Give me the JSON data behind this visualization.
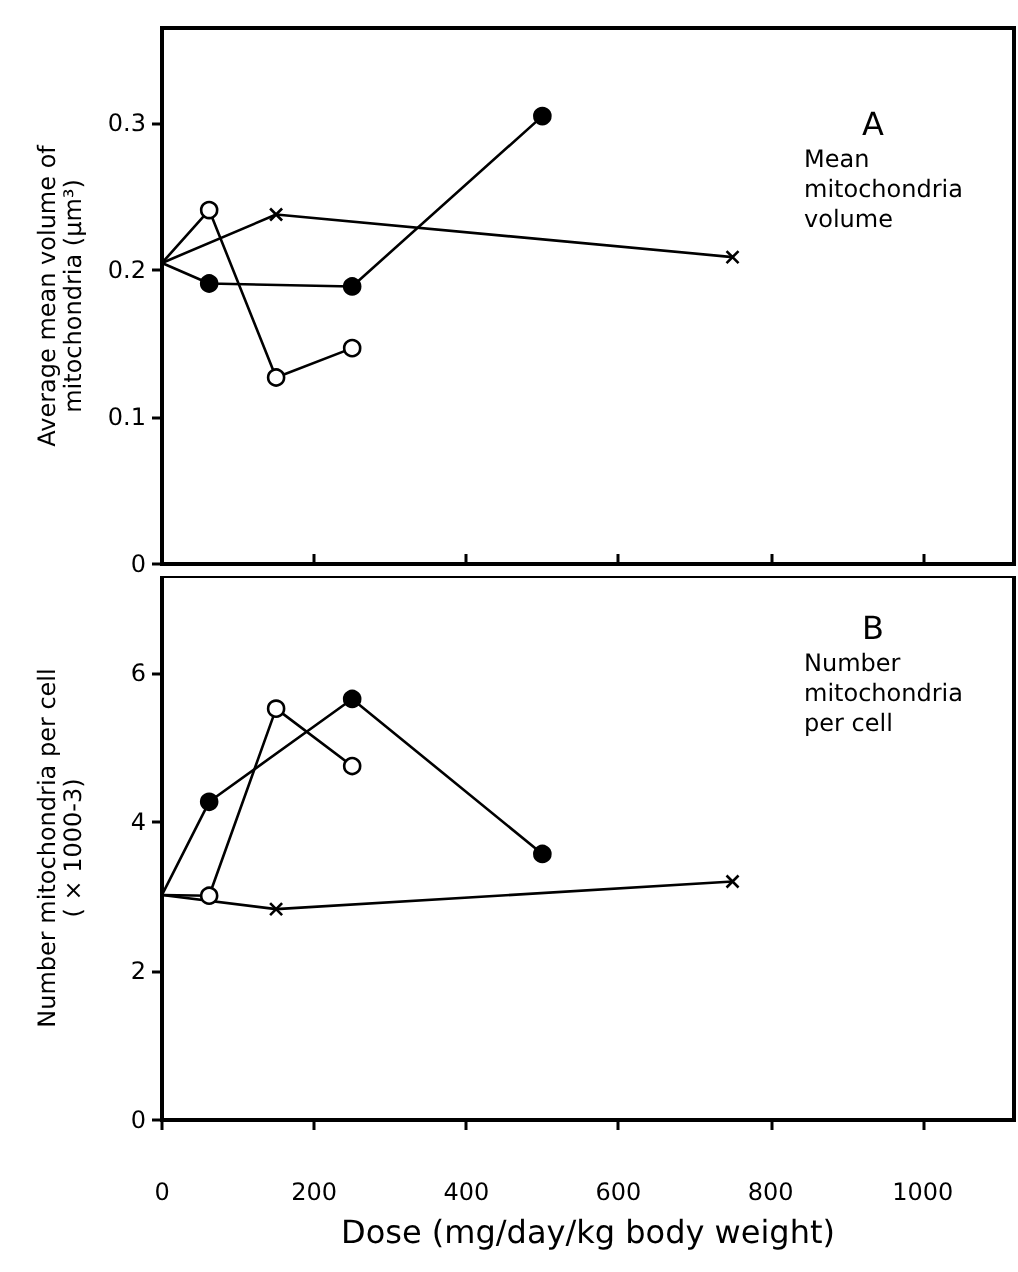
{
  "chart_data": [
    {
      "type": "line",
      "ylabel": "Average mean volume of\nmitochondria (μm³)",
      "annotations": [
        "A",
        "Mean\nmitochondria\nvolume"
      ],
      "xlim": [
        0,
        1120
      ],
      "xticks": [
        0,
        200,
        400,
        600,
        800,
        1000
      ],
      "ylim": [
        0,
        0.365
      ],
      "yticks": [
        0,
        0.1,
        0.2,
        0.3
      ],
      "tick_labels": "y",
      "line_style": "solid",
      "series": [
        {
          "color": "#000000",
          "marker": "circle",
          "x": [
            0,
            62,
            250,
            500
          ],
          "values": [
            0.205,
            0.191,
            0.189,
            0.305
          ]
        },
        {
          "color": "#ffffff",
          "marker": "circle",
          "x": [
            0,
            62,
            150,
            250
          ],
          "values": [
            0.205,
            0.241,
            0.127,
            0.147
          ]
        },
        {
          "color": "#000000",
          "marker": "cross",
          "x": [
            0,
            150,
            750
          ],
          "values": [
            0.205,
            0.238,
            0.209
          ]
        }
      ]
    },
    {
      "type": "line",
      "xlabel": "Dose (mg/day/kg body weight)",
      "ylabel": "Number mitochondria per cell\n( × 1000-3)",
      "annotations": [
        "B",
        "Number\nmitochondria\nper cell"
      ],
      "xlim": [
        0,
        1120
      ],
      "xticks": [
        0,
        200,
        400,
        600,
        800,
        1000
      ],
      "ylim": [
        0,
        7.3
      ],
      "yticks": [
        0,
        2,
        4,
        6
      ],
      "line_style": "solid",
      "series": [
        {
          "color": "#000000",
          "marker": "circle",
          "x": [
            0,
            62,
            250,
            500
          ],
          "values": [
            3.02,
            4.27,
            5.65,
            3.57
          ]
        },
        {
          "color": "#ffffff",
          "marker": "circle",
          "x": [
            0,
            62,
            150,
            250
          ],
          "values": [
            3.02,
            3.01,
            5.52,
            4.75
          ]
        },
        {
          "color": "#000000",
          "marker": "cross",
          "x": [
            0,
            150,
            750
          ],
          "values": [
            3.02,
            2.83,
            3.2
          ]
        }
      ]
    }
  ]
}
